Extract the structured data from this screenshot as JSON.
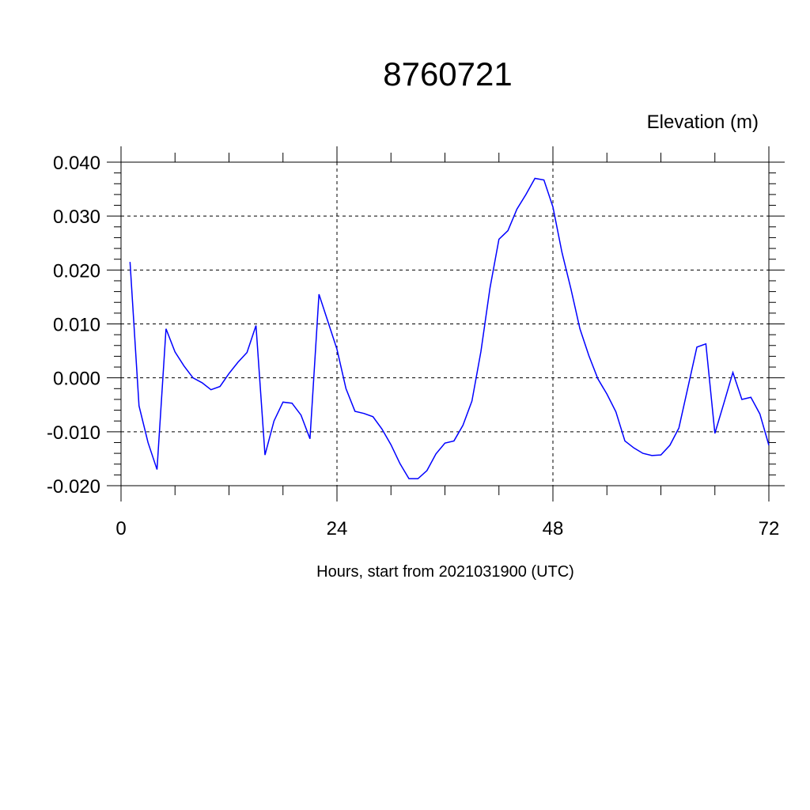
{
  "chart_data": {
    "type": "line",
    "title": "8760721",
    "ylabel": "Elevation (m)",
    "xlabel": "Hours, start from 2021031900 (UTC)",
    "xlim": [
      0,
      72
    ],
    "ylim": [
      -0.02,
      0.04
    ],
    "x_ticks": [
      0,
      24,
      48,
      72
    ],
    "x_tick_labels": [
      "0",
      "24",
      "48",
      "72"
    ],
    "y_ticks": [
      -0.02,
      -0.01,
      0.0,
      0.01,
      0.02,
      0.03,
      0.04
    ],
    "y_tick_labels": [
      "-0.020",
      "-0.010",
      "0.000",
      "0.010",
      "0.020",
      "0.030",
      "0.040"
    ],
    "grid": true,
    "line_color": "#0000ff",
    "series": [
      {
        "x": [
          1,
          2,
          3,
          4,
          5,
          6,
          7,
          8,
          9,
          10,
          11,
          12,
          13,
          14,
          15,
          16,
          17,
          18,
          19,
          20,
          21,
          22,
          23,
          24,
          25,
          26,
          27,
          28,
          29,
          30,
          31,
          32,
          33,
          34,
          35,
          36,
          37,
          38,
          39,
          40,
          41,
          42,
          43,
          44,
          45,
          46,
          47,
          48,
          49,
          50,
          51,
          52,
          53,
          54,
          55,
          56,
          57,
          58,
          59,
          60,
          61,
          62,
          63,
          64,
          65,
          66,
          67,
          68,
          69,
          70,
          71,
          72
        ],
        "y": [
          0.0215,
          -0.0052,
          -0.012,
          -0.017,
          0.0091,
          0.0048,
          0.0022,
          0.0,
          -0.0009,
          -0.0022,
          -0.0016,
          0.0008,
          0.0029,
          0.0047,
          0.0097,
          -0.0143,
          -0.008,
          -0.0045,
          -0.0047,
          -0.0069,
          -0.0113,
          0.0155,
          0.0104,
          0.0053,
          -0.002,
          -0.0062,
          -0.0066,
          -0.0072,
          -0.0095,
          -0.0124,
          -0.0159,
          -0.0187,
          -0.0187,
          -0.0172,
          -0.0141,
          -0.0121,
          -0.0117,
          -0.0088,
          -0.0043,
          0.0049,
          0.0166,
          0.0257,
          0.0273,
          0.0313,
          0.034,
          0.037,
          0.0367,
          0.0317,
          0.0233,
          0.0165,
          0.0091,
          0.0041,
          -0.0002,
          -0.003,
          -0.0063,
          -0.0117,
          -0.013,
          -0.014,
          -0.0144,
          -0.0143,
          -0.0125,
          -0.0093,
          -0.0018,
          0.0057,
          0.0063,
          -0.0103,
          -0.0047,
          0.001,
          -0.004,
          -0.0036,
          -0.0067,
          -0.0125
        ]
      }
    ]
  }
}
